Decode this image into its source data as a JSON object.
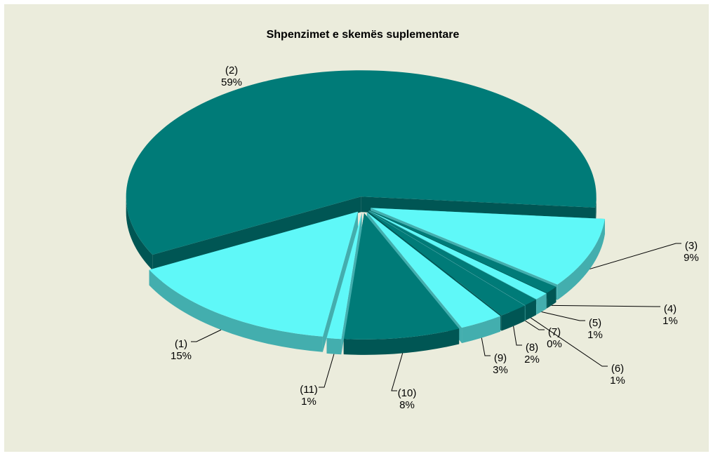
{
  "chart_data": {
    "type": "pie3d",
    "title": "Shpenzimet e skemës suplementare",
    "categories": [
      "(1)",
      "(2)",
      "(3)",
      "(4)",
      "(5)",
      "(6)",
      "(7)",
      "(8)",
      "(9)",
      "(10)",
      "(11)"
    ],
    "values": [
      15,
      59,
      9,
      1,
      1,
      1,
      0,
      2,
      3,
      8,
      1
    ],
    "value_labels": [
      "15%",
      "59%",
      "9%",
      "1%",
      "1%",
      "1%",
      "0%",
      "2%",
      "3%",
      "8%",
      "1%"
    ],
    "colors": [
      "#5ff8f8",
      "#007b78",
      "#5ff8f8",
      "#007b78",
      "#5ff8f8",
      "#007b78",
      "#5ff8f8",
      "#007b78",
      "#5ff8f8",
      "#007b78",
      "#5ff8f8"
    ]
  }
}
